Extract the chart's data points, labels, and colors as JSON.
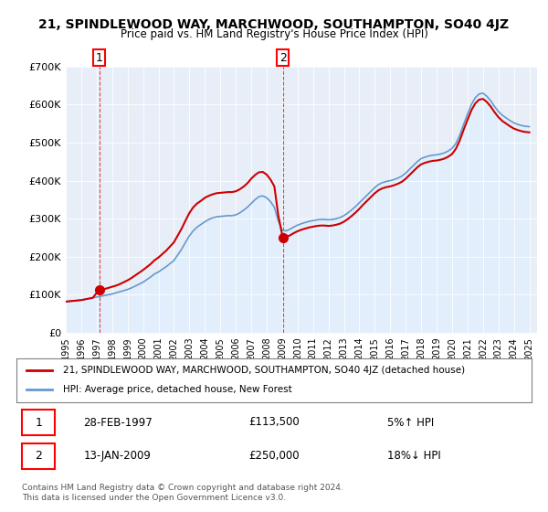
{
  "title": "21, SPINDLEWOOD WAY, MARCHWOOD, SOUTHAMPTON, SO40 4JZ",
  "subtitle": "Price paid vs. HM Land Registry's House Price Index (HPI)",
  "ylabel_ticks": [
    "£0",
    "£100K",
    "£200K",
    "£300K",
    "£400K",
    "£500K",
    "£600K",
    "£700K"
  ],
  "ylim": [
    0,
    700000
  ],
  "xlim_start": 1995.0,
  "xlim_end": 2025.5,
  "sale1": {
    "date": 1997.167,
    "price": 113500,
    "label": "1",
    "pct": "5%↑ HPI",
    "date_str": "28-FEB-1997"
  },
  "sale2": {
    "date": 2009.042,
    "price": 250000,
    "label": "2",
    "pct": "18%↓ HPI",
    "date_str": "13-JAN-2009"
  },
  "line_color_property": "#cc0000",
  "line_color_hpi": "#6699cc",
  "fill_color_hpi": "#ddeeff",
  "background_color": "#f0f4ff",
  "plot_bg": "#e8eef8",
  "legend_label_property": "21, SPINDLEWOOD WAY, MARCHWOOD, SOUTHAMPTON, SO40 4JZ (detached house)",
  "legend_label_hpi": "HPI: Average price, detached house, New Forest",
  "footer": "Contains HM Land Registry data © Crown copyright and database right 2024.\nThis data is licensed under the Open Government Licence v3.0.",
  "hpi_years": [
    1995.0,
    1995.25,
    1995.5,
    1995.75,
    1996.0,
    1996.25,
    1996.5,
    1996.75,
    1997.0,
    1997.25,
    1997.5,
    1997.75,
    1998.0,
    1998.25,
    1998.5,
    1998.75,
    1999.0,
    1999.25,
    1999.5,
    1999.75,
    2000.0,
    2000.25,
    2000.5,
    2000.75,
    2001.0,
    2001.25,
    2001.5,
    2001.75,
    2002.0,
    2002.25,
    2002.5,
    2002.75,
    2003.0,
    2003.25,
    2003.5,
    2003.75,
    2004.0,
    2004.25,
    2004.5,
    2004.75,
    2005.0,
    2005.25,
    2005.5,
    2005.75,
    2006.0,
    2006.25,
    2006.5,
    2006.75,
    2007.0,
    2007.25,
    2007.5,
    2007.75,
    2008.0,
    2008.25,
    2008.5,
    2008.75,
    2009.0,
    2009.25,
    2009.5,
    2009.75,
    2010.0,
    2010.25,
    2010.5,
    2010.75,
    2011.0,
    2011.25,
    2011.5,
    2011.75,
    2012.0,
    2012.25,
    2012.5,
    2012.75,
    2013.0,
    2013.25,
    2013.5,
    2013.75,
    2014.0,
    2014.25,
    2014.5,
    2014.75,
    2015.0,
    2015.25,
    2015.5,
    2015.75,
    2016.0,
    2016.25,
    2016.5,
    2016.75,
    2017.0,
    2017.25,
    2017.5,
    2017.75,
    2018.0,
    2018.25,
    2018.5,
    2018.75,
    2019.0,
    2019.25,
    2019.5,
    2019.75,
    2020.0,
    2020.25,
    2020.5,
    2020.75,
    2021.0,
    2021.25,
    2021.5,
    2021.75,
    2022.0,
    2022.25,
    2022.5,
    2022.75,
    2023.0,
    2023.25,
    2023.5,
    2023.75,
    2024.0,
    2024.25,
    2024.5,
    2024.75,
    2025.0
  ],
  "hpi_values": [
    82000,
    83000,
    84000,
    85000,
    86000,
    88000,
    90000,
    92000,
    94000,
    96000,
    98000,
    100000,
    102000,
    105000,
    108000,
    111000,
    114000,
    118000,
    123000,
    128000,
    133000,
    140000,
    147000,
    155000,
    160000,
    167000,
    174000,
    182000,
    190000,
    205000,
    220000,
    238000,
    255000,
    268000,
    278000,
    285000,
    292000,
    298000,
    302000,
    305000,
    306000,
    307000,
    308000,
    308000,
    310000,
    315000,
    322000,
    330000,
    340000,
    350000,
    358000,
    360000,
    355000,
    345000,
    330000,
    295000,
    270000,
    268000,
    272000,
    278000,
    283000,
    287000,
    290000,
    293000,
    295000,
    297000,
    298000,
    298000,
    297000,
    298000,
    300000,
    303000,
    308000,
    315000,
    323000,
    332000,
    342000,
    352000,
    362000,
    372000,
    382000,
    390000,
    395000,
    398000,
    400000,
    403000,
    407000,
    412000,
    420000,
    430000,
    440000,
    450000,
    458000,
    462000,
    465000,
    467000,
    468000,
    470000,
    473000,
    478000,
    485000,
    498000,
    520000,
    548000,
    575000,
    600000,
    618000,
    628000,
    630000,
    622000,
    610000,
    595000,
    582000,
    572000,
    565000,
    558000,
    552000,
    548000,
    545000,
    543000,
    542000
  ],
  "prop_years": [
    1995.0,
    1995.25,
    1995.5,
    1995.75,
    1996.0,
    1996.25,
    1996.5,
    1996.75,
    1997.167,
    1997.25,
    1997.5,
    1997.75,
    1998.0,
    1998.25,
    1998.5,
    1998.75,
    1999.0,
    1999.25,
    1999.5,
    1999.75,
    2000.0,
    2000.25,
    2000.5,
    2000.75,
    2001.0,
    2001.25,
    2001.5,
    2001.75,
    2002.0,
    2002.25,
    2002.5,
    2002.75,
    2003.0,
    2003.25,
    2003.5,
    2003.75,
    2004.0,
    2004.25,
    2004.5,
    2004.75,
    2005.0,
    2005.25,
    2005.5,
    2005.75,
    2006.0,
    2006.25,
    2006.5,
    2006.75,
    2007.0,
    2007.25,
    2007.5,
    2007.75,
    2008.0,
    2008.25,
    2008.5,
    2008.75,
    2009.042,
    2009.25,
    2009.5,
    2009.75,
    2010.0,
    2010.25,
    2010.5,
    2010.75,
    2011.0,
    2011.25,
    2011.5,
    2011.75,
    2012.0,
    2012.25,
    2012.5,
    2012.75,
    2013.0,
    2013.25,
    2013.5,
    2013.75,
    2014.0,
    2014.25,
    2014.5,
    2014.75,
    2015.0,
    2015.25,
    2015.5,
    2015.75,
    2016.0,
    2016.25,
    2016.5,
    2016.75,
    2017.0,
    2017.25,
    2017.5,
    2017.75,
    2018.0,
    2018.25,
    2018.5,
    2018.75,
    2019.0,
    2019.25,
    2019.5,
    2019.75,
    2020.0,
    2020.25,
    2020.5,
    2020.75,
    2021.0,
    2021.25,
    2021.5,
    2021.75,
    2022.0,
    2022.25,
    2022.5,
    2022.75,
    2023.0,
    2023.25,
    2023.5,
    2023.75,
    2024.0,
    2024.25,
    2024.5,
    2024.75,
    2025.0
  ],
  "prop_values": [
    82000,
    83000,
    84000,
    85000,
    86000,
    88000,
    90000,
    92000,
    113500,
    113500,
    115000,
    118000,
    121000,
    124000,
    128000,
    133000,
    138000,
    144000,
    151000,
    158000,
    165000,
    173000,
    181000,
    191000,
    198000,
    207000,
    216000,
    227000,
    238000,
    256000,
    274000,
    295000,
    315000,
    330000,
    340000,
    347000,
    355000,
    360000,
    364000,
    367000,
    368000,
    369000,
    370000,
    370000,
    372000,
    377000,
    384000,
    393000,
    405000,
    415000,
    422000,
    423000,
    416000,
    403000,
    385000,
    310000,
    250000,
    252000,
    256000,
    262000,
    267000,
    271000,
    274000,
    277000,
    279000,
    281000,
    282000,
    282000,
    281000,
    282000,
    284000,
    287000,
    292000,
    299000,
    307000,
    316000,
    326000,
    337000,
    347000,
    357000,
    367000,
    375000,
    380000,
    383000,
    385000,
    388000,
    392000,
    397000,
    405000,
    415000,
    425000,
    435000,
    443000,
    447000,
    450000,
    452000,
    453000,
    455000,
    458000,
    463000,
    470000,
    484000,
    506000,
    534000,
    560000,
    585000,
    603000,
    613000,
    615000,
    607000,
    595000,
    580000,
    567000,
    557000,
    550000,
    543000,
    537000,
    533000,
    530000,
    528000,
    527000
  ]
}
